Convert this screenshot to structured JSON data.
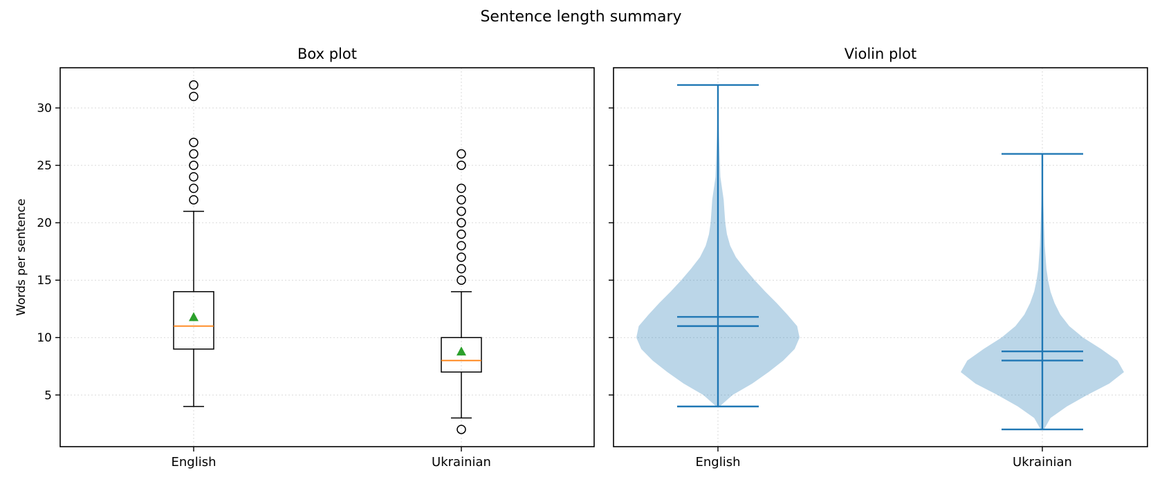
{
  "figure": {
    "title": "Sentence length summary"
  },
  "shared": {
    "ylabel": "Words per sentence",
    "ylim": [
      0.5,
      33.5
    ],
    "yticks": [
      5,
      10,
      15,
      20,
      25,
      30
    ],
    "categories": [
      "English",
      "Ukrainian"
    ],
    "grid": "dotted"
  },
  "colors": {
    "box_edge": "#000000",
    "median": "#ff7f0e",
    "mean_marker": "#2ca02c",
    "violin_body": "#1f77b4",
    "violin_lines": "#1f77b4",
    "grid": "#d9d9d9"
  },
  "chart_data": [
    {
      "type": "box",
      "title": "Box plot",
      "categories": [
        "English",
        "Ukrainian"
      ],
      "series": [
        {
          "category": "English",
          "whisker_low": 4,
          "q1": 9,
          "median": 11,
          "q3": 14,
          "whisker_high": 21,
          "mean": 11.8,
          "outliers": [
            22,
            23,
            24,
            25,
            26,
            27,
            31,
            32
          ]
        },
        {
          "category": "Ukrainian",
          "whisker_low": 3,
          "q1": 7,
          "median": 8,
          "q3": 10,
          "whisker_high": 14,
          "mean": 8.8,
          "outliers": [
            2,
            15,
            16,
            17,
            18,
            19,
            20,
            21,
            22,
            23,
            25,
            26
          ]
        }
      ],
      "ylabel": "Words per sentence",
      "ylim": [
        0.5,
        33.5
      ],
      "grid": true
    },
    {
      "type": "violin",
      "title": "Violin plot",
      "categories": [
        "English",
        "Ukrainian"
      ],
      "series": [
        {
          "category": "English",
          "min": 4,
          "max": 32,
          "mean": 11.8,
          "median": 11,
          "density_profile": [
            [
              4,
              0.02
            ],
            [
              5,
              0.18
            ],
            [
              6,
              0.42
            ],
            [
              7,
              0.62
            ],
            [
              8,
              0.8
            ],
            [
              9,
              0.94
            ],
            [
              10,
              1.0
            ],
            [
              11,
              0.97
            ],
            [
              12,
              0.85
            ],
            [
              13,
              0.72
            ],
            [
              14,
              0.58
            ],
            [
              15,
              0.45
            ],
            [
              16,
              0.33
            ],
            [
              17,
              0.22
            ],
            [
              18,
              0.15
            ],
            [
              19,
              0.11
            ],
            [
              20,
              0.09
            ],
            [
              21,
              0.08
            ],
            [
              22,
              0.07
            ],
            [
              23,
              0.05
            ],
            [
              24,
              0.03
            ],
            [
              26,
              0.02
            ],
            [
              28,
              0.01
            ],
            [
              30,
              0.004
            ],
            [
              32,
              0.0
            ]
          ]
        },
        {
          "category": "Ukrainian",
          "min": 2,
          "max": 26,
          "mean": 8.8,
          "median": 8,
          "density_profile": [
            [
              2,
              0.02
            ],
            [
              3,
              0.1
            ],
            [
              4,
              0.3
            ],
            [
              5,
              0.55
            ],
            [
              6,
              0.82
            ],
            [
              7,
              1.0
            ],
            [
              8,
              0.92
            ],
            [
              9,
              0.72
            ],
            [
              10,
              0.5
            ],
            [
              11,
              0.33
            ],
            [
              12,
              0.22
            ],
            [
              13,
              0.15
            ],
            [
              14,
              0.1
            ],
            [
              15,
              0.07
            ],
            [
              16,
              0.05
            ],
            [
              17,
              0.04
            ],
            [
              18,
              0.03
            ],
            [
              20,
              0.02
            ],
            [
              22,
              0.01
            ],
            [
              24,
              0.005
            ],
            [
              26,
              0.0
            ]
          ]
        }
      ],
      "ylim": [
        0.5,
        33.5
      ],
      "grid": true
    }
  ]
}
